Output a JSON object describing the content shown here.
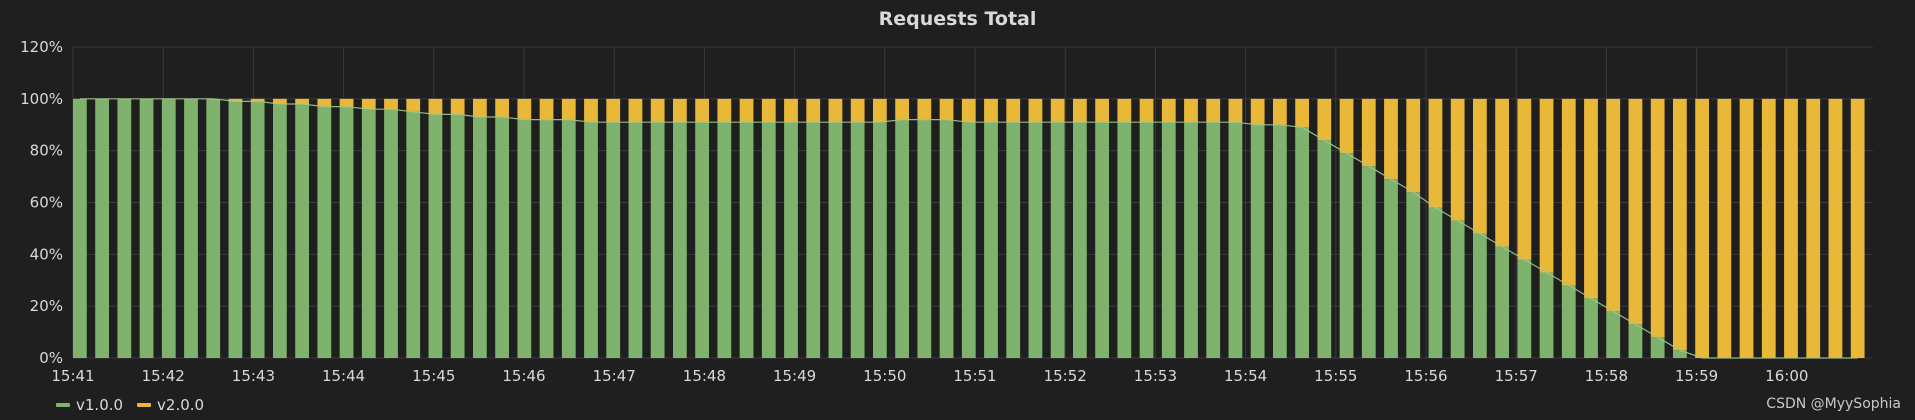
{
  "panel": {
    "watermark": "CSDN @MyySophia"
  },
  "colors": {
    "v1": "#7eb26d",
    "v2": "#eab839",
    "grid": "#3a3a3c",
    "background": "#1f1f20"
  },
  "chart_data": {
    "type": "bar",
    "stacked": true,
    "title": "Requests Total",
    "xlabel": "",
    "ylabel": "",
    "ylim": [
      0,
      120
    ],
    "yticks": [
      "0%",
      "20%",
      "40%",
      "60%",
      "80%",
      "100%",
      "120%"
    ],
    "xticks": [
      "15:41",
      "15:42",
      "15:43",
      "15:44",
      "15:45",
      "15:46",
      "15:47",
      "15:48",
      "15:49",
      "15:50",
      "15:51",
      "15:52",
      "15:53",
      "15:54",
      "15:55",
      "15:56",
      "15:57",
      "15:58",
      "15:59",
      "16:00"
    ],
    "grid": true,
    "legend": "bottom-left",
    "series": [
      {
        "name": "v1.0.0",
        "color": "#7eb26d",
        "values": [
          100,
          100,
          100,
          100,
          100,
          100,
          100,
          99,
          99,
          98,
          98,
          97,
          97,
          96,
          96,
          95,
          94,
          94,
          93,
          93,
          92,
          92,
          92,
          91,
          91,
          91,
          91,
          91,
          91,
          91,
          91,
          91,
          91,
          91,
          91,
          91,
          91,
          92,
          92,
          92,
          91,
          91,
          91,
          91,
          91,
          91,
          91,
          91,
          91,
          91,
          91,
          91,
          91,
          90,
          90,
          89,
          84,
          79,
          74,
          69,
          64,
          58,
          53,
          48,
          43,
          38,
          33,
          28,
          23,
          18,
          13,
          8,
          3,
          0,
          0,
          0,
          0,
          0,
          0,
          0,
          0
        ]
      },
      {
        "name": "v2.0.0",
        "color": "#eab839",
        "values": [
          0,
          0,
          0,
          0,
          0,
          0,
          0,
          1,
          1,
          2,
          2,
          3,
          3,
          4,
          4,
          5,
          6,
          6,
          7,
          7,
          8,
          8,
          8,
          9,
          9,
          9,
          9,
          9,
          9,
          9,
          9,
          9,
          9,
          9,
          9,
          9,
          9,
          8,
          8,
          8,
          9,
          9,
          9,
          9,
          9,
          9,
          9,
          9,
          9,
          9,
          9,
          9,
          9,
          10,
          10,
          11,
          16,
          21,
          26,
          31,
          36,
          42,
          47,
          52,
          57,
          62,
          67,
          72,
          77,
          82,
          87,
          92,
          97,
          100,
          100,
          100,
          100,
          100,
          100,
          100,
          100
        ]
      }
    ]
  }
}
